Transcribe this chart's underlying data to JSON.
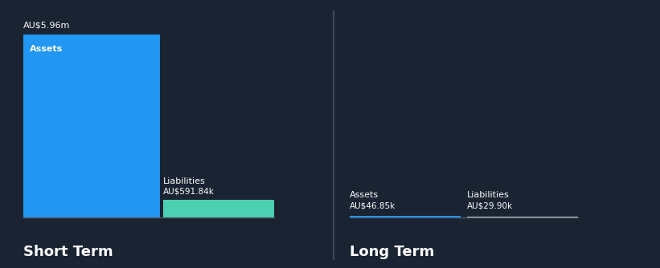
{
  "bg_color": "#1a2332",
  "text_color": "#ffffff",
  "short_term_assets_value": 5960000,
  "short_term_liabilities_value": 591840,
  "long_term_assets_value": 46850,
  "long_term_liabilities_value": 29900,
  "short_term_assets_label": "AU$5.96m",
  "short_term_liabilities_label": "AU$591.84k",
  "long_term_assets_label": "AU$46.85k",
  "long_term_liabilities_label": "AU$29.90k",
  "short_term_assets_color": "#2196f3",
  "short_term_liabilities_color": "#4dd0b1",
  "long_term_assets_color": "#2196f3",
  "long_term_liabilities_color": "#e8e8e8",
  "short_term_label": "Short Term",
  "long_term_label": "Long Term",
  "assets_label": "Assets",
  "liabilities_label": "Liabilities",
  "line_color": "#4a5a6a",
  "divider_color": "#3a4a5c"
}
